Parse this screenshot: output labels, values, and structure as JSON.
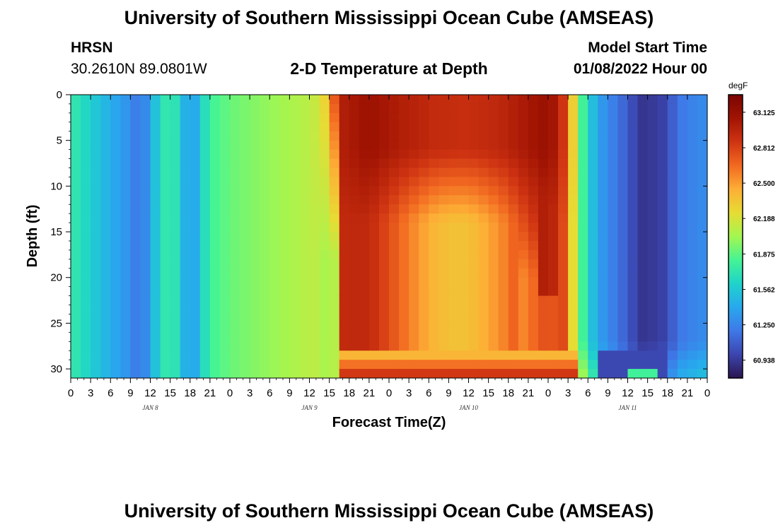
{
  "header": {
    "title": "University of Southern Mississippi Ocean Cube (AMSEAS)",
    "station_name": "HRSN",
    "station_coords": "30.2610N  89.0801W",
    "plot_title": "2-D Temperature at Depth",
    "start_label": "Model Start Time",
    "start_value": "01/08/2022 Hour 00"
  },
  "footer": {
    "title": "University of Southern Mississippi Ocean Cube (AMSEAS)"
  },
  "chart_data": {
    "type": "heatmap",
    "xlabel": "Forecast Time(Z)",
    "ylabel": "Depth (ft)",
    "x_tick_labels": [
      "0",
      "3",
      "6",
      "9",
      "12",
      "15",
      "18",
      "21",
      "0",
      "3",
      "6",
      "9",
      "12",
      "15",
      "18",
      "21",
      "0",
      "3",
      "6",
      "9",
      "12",
      "15",
      "18",
      "21",
      "0",
      "3",
      "6",
      "9",
      "12",
      "15",
      "18",
      "21",
      "0"
    ],
    "x_range_hours": [
      0,
      96
    ],
    "day_labels": [
      {
        "label": "JAN 8",
        "hour": 12
      },
      {
        "label": "JAN 9",
        "hour": 36
      },
      {
        "label": "JAN 10",
        "hour": 60
      },
      {
        "label": "JAN 11",
        "hour": 84
      }
    ],
    "y_ticks": [
      0,
      5,
      10,
      15,
      20,
      25,
      30
    ],
    "y_tick_labels": [
      "0",
      "5",
      "10",
      "15",
      "20",
      "25",
      "30"
    ],
    "y_range_ft": [
      0,
      31
    ],
    "y_inverted": true,
    "colorbar": {
      "unit": "degF",
      "min": 60.78,
      "max": 63.28,
      "tick_values": [
        63.125,
        62.812,
        62.5,
        62.188,
        61.875,
        61.562,
        61.25,
        60.938
      ],
      "tick_labels": [
        "63.125",
        "62.812",
        "62.500",
        "62.188",
        "61.875",
        "61.562",
        "61.250",
        "60.938"
      ],
      "colors": [
        "#2a1650",
        "#3c45ae",
        "#3f78e8",
        "#28a8ee",
        "#1fd3cb",
        "#45f494",
        "#a4f650",
        "#e6dc34",
        "#fdae36",
        "#f26921",
        "#cf3412",
        "#a11403",
        "#7a0403"
      ]
    },
    "surface_profile": [
      {
        "hour": 0,
        "value": 61.75
      },
      {
        "hour": 3,
        "value": 61.6
      },
      {
        "hour": 6,
        "value": 61.43
      },
      {
        "hour": 9,
        "value": 61.3
      },
      {
        "hour": 10.5,
        "value": 61.15
      },
      {
        "hour": 12,
        "value": 61.4
      },
      {
        "hour": 13.5,
        "value": 61.65
      },
      {
        "hour": 15,
        "value": 61.8
      },
      {
        "hour": 16.5,
        "value": 61.6
      },
      {
        "hour": 18,
        "value": 61.3
      },
      {
        "hour": 19.5,
        "value": 61.55
      },
      {
        "hour": 21,
        "value": 61.8
      },
      {
        "hour": 24,
        "value": 61.9
      },
      {
        "hour": 27,
        "value": 61.95
      },
      {
        "hour": 30,
        "value": 62.0
      },
      {
        "hour": 33,
        "value": 62.05
      },
      {
        "hour": 36,
        "value": 62.1
      },
      {
        "hour": 38,
        "value": 62.2
      },
      {
        "hour": 39.6,
        "value": 62.7
      },
      {
        "hour": 41,
        "value": 63.0
      },
      {
        "hour": 45,
        "value": 63.1
      },
      {
        "hour": 50,
        "value": 63.0
      },
      {
        "hour": 55,
        "value": 62.92
      },
      {
        "hour": 60,
        "value": 62.9
      },
      {
        "hour": 65,
        "value": 62.95
      },
      {
        "hour": 69,
        "value": 63.05
      },
      {
        "hour": 72,
        "value": 63.12
      },
      {
        "hour": 74,
        "value": 62.95
      },
      {
        "hour": 75,
        "value": 62.6
      },
      {
        "hour": 76.5,
        "value": 62.0
      },
      {
        "hour": 78,
        "value": 61.6
      },
      {
        "hour": 80,
        "value": 61.35
      },
      {
        "hour": 83,
        "value": 61.15
      },
      {
        "hour": 86,
        "value": 60.92
      },
      {
        "hour": 89,
        "value": 60.95
      },
      {
        "hour": 92,
        "value": 61.2
      },
      {
        "hour": 96,
        "value": 61.3
      }
    ]
  }
}
